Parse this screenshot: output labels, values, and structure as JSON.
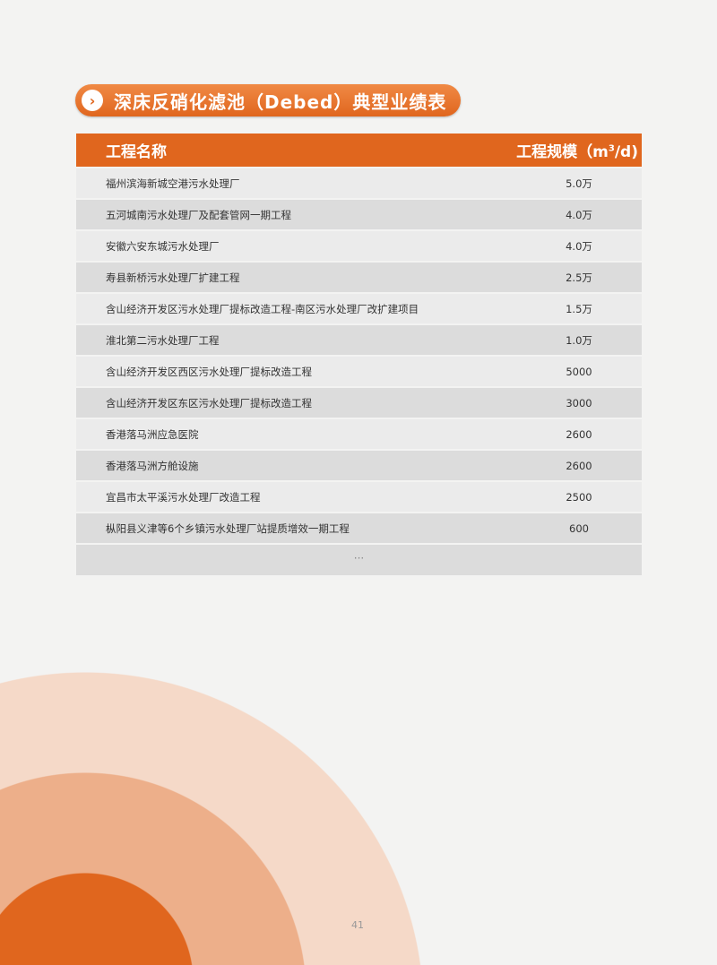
{
  "title": "深床反硝化滤池（Debed）典型业绩表",
  "title_icon": "chevron-right-icon",
  "colors": {
    "accent": "#e0661e",
    "circle_light": "#f5d9c8",
    "circle_mid": "#edaf8a"
  },
  "table": {
    "header_name": "工程名称",
    "header_scale": "工程规模（m",
    "header_scale_sup": "3",
    "header_scale_tail": "/d)",
    "rows": [
      {
        "name": "福州滨海新城空港污水处理厂",
        "scale": "5.0万"
      },
      {
        "name": "五河城南污水处理厂及配套管网一期工程",
        "scale": "4.0万"
      },
      {
        "name": "安徽六安东城污水处理厂",
        "scale": "4.0万"
      },
      {
        "name": "寿县新桥污水处理厂扩建工程",
        "scale": "2.5万"
      },
      {
        "name": "含山经济开发区污水处理厂提标改造工程-南区污水处理厂改扩建项目",
        "scale": "1.5万"
      },
      {
        "name": "淮北第二污水处理厂工程",
        "scale": "1.0万"
      },
      {
        "name": "含山经济开发区西区污水处理厂提标改造工程",
        "scale": "5000"
      },
      {
        "name": "含山经济开发区东区污水处理厂提标改造工程",
        "scale": "3000"
      },
      {
        "name": "香港落马洲应急医院",
        "scale": "2600"
      },
      {
        "name": "香港落马洲方舱设施",
        "scale": "2600"
      },
      {
        "name": "宜昌市太平溪污水处理厂改造工程",
        "scale": "2500"
      },
      {
        "name": "枞阳县义津等6个乡镇污水处理厂站提质增效一期工程",
        "scale": "600"
      }
    ],
    "more": "···"
  },
  "page_number": "41"
}
